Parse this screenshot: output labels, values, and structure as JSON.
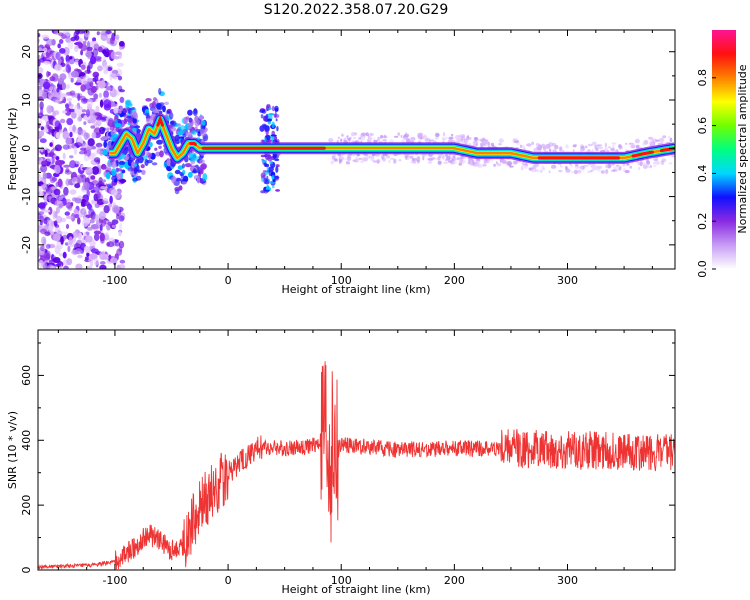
{
  "title": "S120.2022.358.07.20.G29",
  "chart_data": [
    {
      "type": "heatmap",
      "title": "S120.2022.358.07.20.G29",
      "xlabel": "Height of straight line (km)",
      "ylabel": "Frequency (Hz)",
      "xlim": [
        -168,
        395
      ],
      "ylim": [
        -25,
        24.5
      ],
      "x_ticks": [
        -100,
        0,
        100,
        200,
        300
      ],
      "y_ticks": [
        -20,
        -10,
        0,
        10,
        20
      ],
      "grid": false,
      "colorbar": {
        "label": "Normalized spectral amplitude",
        "range": [
          0,
          1
        ],
        "ticks": [
          0.0,
          0.2,
          0.4,
          0.6,
          0.8
        ],
        "tick_labels": [
          "0.0",
          "0.2",
          "0.4",
          "0.6",
          "0.8"
        ],
        "colors": [
          "#ffffff",
          "#c79cf5",
          "#8a2be2",
          "#1010ff",
          "#00d8ff",
          "#00ff80",
          "#70ff00",
          "#ffff00",
          "#ff8000",
          "#ff1010",
          "#ff1493"
        ]
      },
      "ridge": {
        "x": [
          -100,
          -95,
          -90,
          -85,
          -80,
          -75,
          -70,
          -65,
          -60,
          -55,
          -50,
          -45,
          -40,
          -35,
          -30,
          -25,
          -20,
          0,
          30,
          40,
          50,
          100,
          150,
          200,
          220,
          250,
          270,
          300,
          350,
          370,
          395
        ],
        "frequency": [
          -1,
          1,
          3,
          2,
          -1,
          1,
          4,
          3,
          6,
          3,
          0,
          -2,
          -1,
          1,
          1,
          0,
          0,
          0,
          0,
          0,
          0,
          0,
          0,
          0,
          -1,
          -1,
          -2,
          -2,
          -2,
          -1,
          0
        ]
      }
    },
    {
      "type": "line",
      "xlabel": "Height of straight line (km)",
      "ylabel": "SNR (10 * v/v)",
      "xlim": [
        -168,
        395
      ],
      "ylim": [
        0,
        740
      ],
      "x_ticks": [
        -100,
        0,
        100,
        200,
        300
      ],
      "y_ticks": [
        0,
        200,
        400,
        600
      ],
      "grid": false,
      "color": "#ee3333",
      "series": [
        {
          "x": [
            -168,
            -140,
            -120,
            -100,
            -90,
            -80,
            -70,
            -60,
            -50,
            -40,
            -30,
            -20,
            -10,
            0,
            10,
            20,
            30,
            50,
            70,
            80,
            85,
            90,
            95,
            100,
            120,
            150,
            200,
            250,
            300,
            350,
            395
          ],
          "values": [
            10,
            12,
            15,
            25,
            50,
            80,
            110,
            90,
            60,
            80,
            150,
            220,
            260,
            300,
            330,
            360,
            380,
            375,
            380,
            390,
            420,
            380,
            360,
            385,
            380,
            370,
            375,
            375,
            370,
            365,
            360
          ]
        }
      ]
    }
  ]
}
